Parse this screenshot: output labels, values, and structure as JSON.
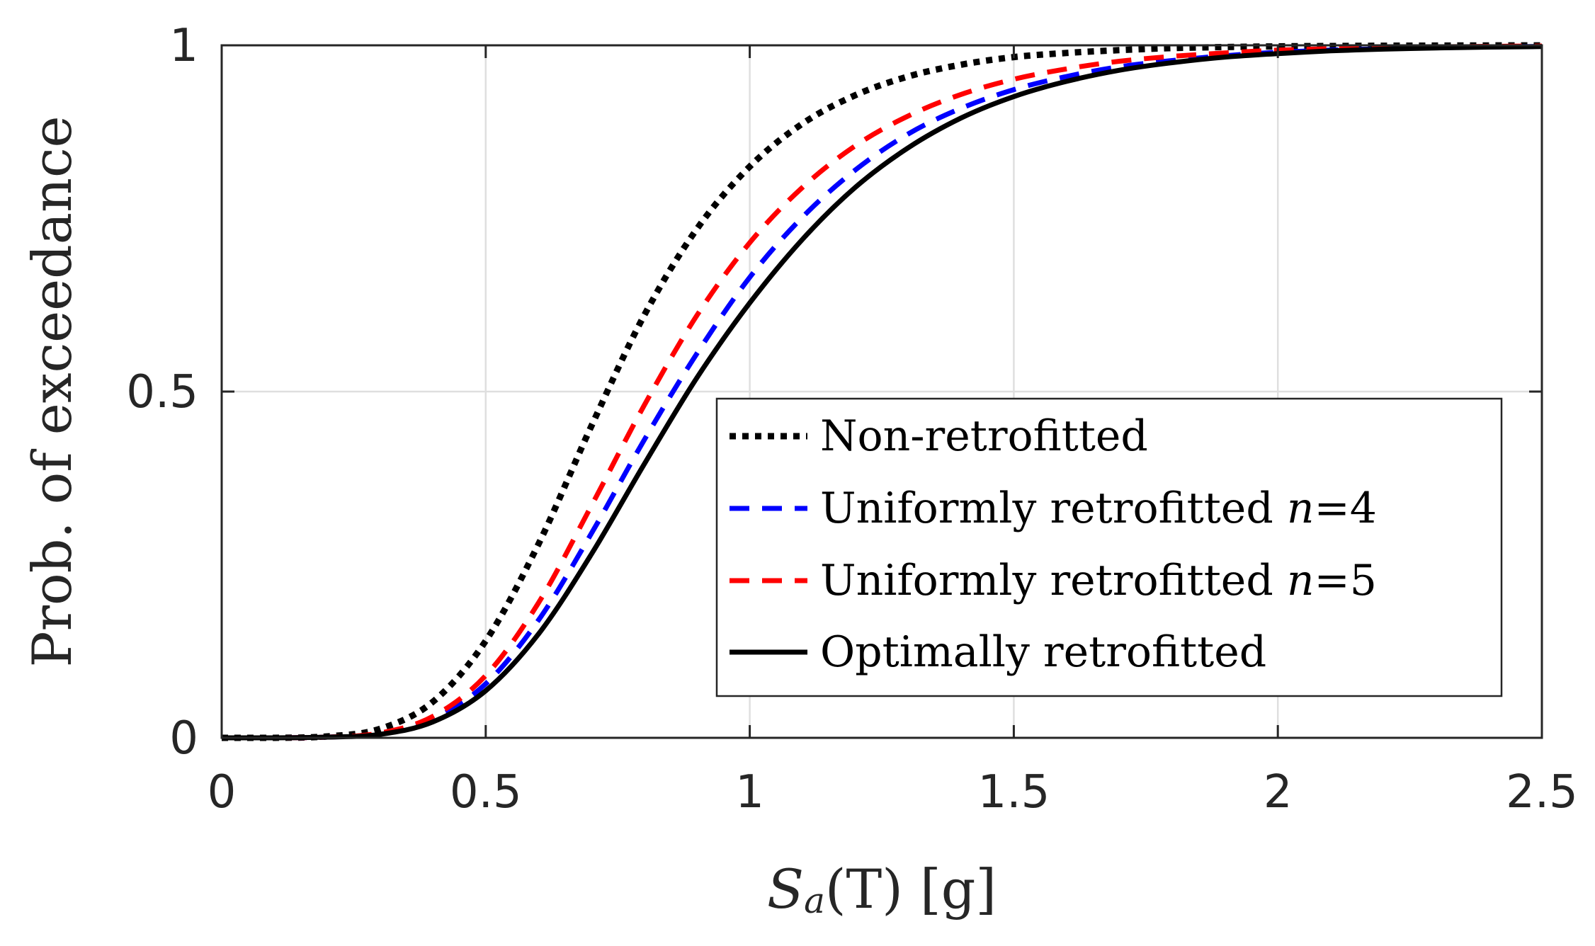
{
  "chart_data": {
    "type": "line",
    "title": "",
    "xlabel": {
      "symbol": "S",
      "subscript": "a",
      "argument": "(T)",
      "unit": "[g]"
    },
    "ylabel": "Prob. of exceedance",
    "xlim": [
      0,
      2.5
    ],
    "ylim": [
      0,
      1
    ],
    "xticks": [
      0,
      0.5,
      1,
      1.5,
      2,
      2.5
    ],
    "xtick_labels": [
      "0",
      "0.5",
      "1",
      "1.5",
      "2",
      "2.5"
    ],
    "yticks": [
      0,
      0.5,
      1
    ],
    "ytick_labels": [
      "0",
      "0.5",
      "1"
    ],
    "grid": true,
    "legend_position": "center-right",
    "x": [
      0,
      0.1,
      0.2,
      0.3,
      0.4,
      0.5,
      0.6,
      0.7,
      0.8,
      0.9,
      1.0,
      1.1,
      1.2,
      1.3,
      1.4,
      1.5,
      1.6,
      1.7,
      1.8,
      1.9,
      2.0,
      2.1,
      2.2,
      2.3,
      2.4,
      2.5
    ],
    "series": [
      {
        "name": "Non-retrofitted",
        "label_text": "Non-retrofitted",
        "label_var": "",
        "label_suffix": "",
        "color": "#000000",
        "style": "dotted",
        "values": [
          0,
          0.0,
          0.002,
          0.013,
          0.052,
          0.14,
          0.28,
          0.45,
          0.61,
          0.735,
          0.825,
          0.887,
          0.928,
          0.955,
          0.972,
          0.983,
          0.989,
          0.993,
          0.996,
          0.9975,
          0.9985,
          0.999,
          0.9994,
          0.9996,
          0.9998,
          0.9999
        ]
      },
      {
        "name": "Uniformly retrofitted n=4",
        "label_text": "Uniformly retrofitted ",
        "label_var": "n",
        "label_suffix": "=4",
        "color": "#0000ff",
        "style": "dashed",
        "values": [
          0,
          0.0,
          0.001,
          0.006,
          0.027,
          0.078,
          0.17,
          0.295,
          0.43,
          0.555,
          0.665,
          0.752,
          0.82,
          0.872,
          0.909,
          0.936,
          0.955,
          0.969,
          0.978,
          0.985,
          0.99,
          0.993,
          0.995,
          0.9965,
          0.9976,
          0.9984
        ]
      },
      {
        "name": "Uniformly retrofitted n=5",
        "label_text": "Uniformly retrofitted ",
        "label_var": "n",
        "label_suffix": "=5",
        "color": "#ff0000",
        "style": "dashed",
        "values": [
          0,
          0.0,
          0.001,
          0.007,
          0.031,
          0.09,
          0.195,
          0.335,
          0.48,
          0.61,
          0.715,
          0.795,
          0.855,
          0.898,
          0.929,
          0.951,
          0.966,
          0.977,
          0.984,
          0.989,
          0.993,
          0.995,
          0.9966,
          0.9977,
          0.9985,
          0.999
        ]
      },
      {
        "name": "Optimally retrofitted",
        "label_text": "Optimally retrofitted",
        "label_var": "",
        "label_suffix": "",
        "color": "#000000",
        "style": "solid",
        "values": [
          0,
          0.0,
          0.001,
          0.005,
          0.023,
          0.068,
          0.15,
          0.265,
          0.395,
          0.52,
          0.628,
          0.72,
          0.795,
          0.852,
          0.895,
          0.926,
          0.948,
          0.964,
          0.975,
          0.983,
          0.988,
          0.992,
          0.9945,
          0.9962,
          0.9974,
          0.9982
        ]
      }
    ]
  }
}
